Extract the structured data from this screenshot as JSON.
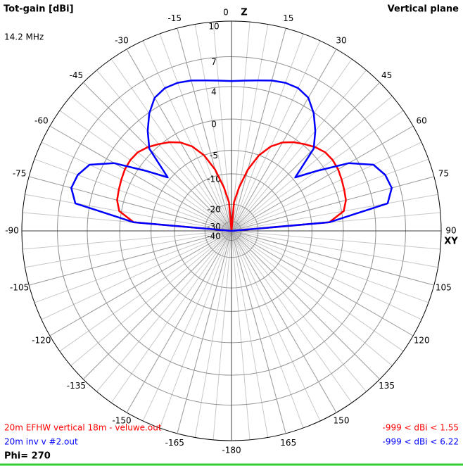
{
  "chart_data": {
    "type": "polar",
    "title": "Tot-gain [dBi]",
    "subtitle": "Vertical plane",
    "frequency": "14.2 MHz",
    "phi": "Phi= 270",
    "zenith_label": "Z",
    "horizon_label": "XY",
    "scale": "arrl",
    "rlim": [
      -40,
      10
    ],
    "rticks": [
      10,
      7,
      4,
      0,
      -5,
      -10,
      -20,
      -30,
      -40
    ],
    "angle_ticks": [
      0,
      15,
      30,
      45,
      60,
      75,
      90,
      105,
      120,
      135,
      150,
      165,
      -180,
      -165,
      -150,
      -135,
      -120,
      -105,
      -90,
      -75,
      -60,
      -45,
      -30,
      -15
    ],
    "theta": [
      -90,
      -85,
      -80,
      -75,
      -70,
      -65,
      -60,
      -55,
      -50,
      -45,
      -40,
      -35,
      -30,
      -25,
      -20,
      -15,
      -10,
      -5,
      0,
      5,
      10,
      15,
      20,
      25,
      30,
      35,
      40,
      45,
      50,
      55,
      60,
      65,
      70,
      75,
      80,
      85,
      90
    ],
    "series": [
      {
        "name": "20m EFHW vertical 18m - veluwe.out",
        "color": "#ff0000",
        "range_label": "-999 < dBi < 1.55",
        "values": [
          -40,
          -2,
          0.3,
          0.9,
          1.1,
          1.3,
          1.5,
          1.55,
          1.4,
          0.9,
          0.2,
          -0.5,
          -1.4,
          -2.8,
          -5,
          -8.5,
          -13.5,
          -19,
          -40,
          -19,
          -13.5,
          -8.5,
          -5,
          -2.8,
          -1.4,
          -0.5,
          0.2,
          0.9,
          1.4,
          1.55,
          1.5,
          1.3,
          1.1,
          0.9,
          0.3,
          -2,
          -40
        ]
      },
      {
        "name": "20m inv v #2.out",
        "color": "#0000ff",
        "range_label": "-999 < dBi < 6.22",
        "values": [
          -40,
          -2,
          5.5,
          6.22,
          6.0,
          5.3,
          3.0,
          -1.0,
          -4.5,
          0.6,
          2.4,
          3.9,
          5.0,
          5.4,
          5.4,
          5.2,
          4.9,
          4.7,
          4.6,
          4.7,
          4.9,
          5.2,
          5.4,
          5.4,
          5.0,
          3.9,
          2.4,
          0.6,
          -4.5,
          -1.0,
          3.0,
          5.3,
          6.0,
          6.22,
          5.5,
          -2,
          -40
        ]
      }
    ]
  }
}
